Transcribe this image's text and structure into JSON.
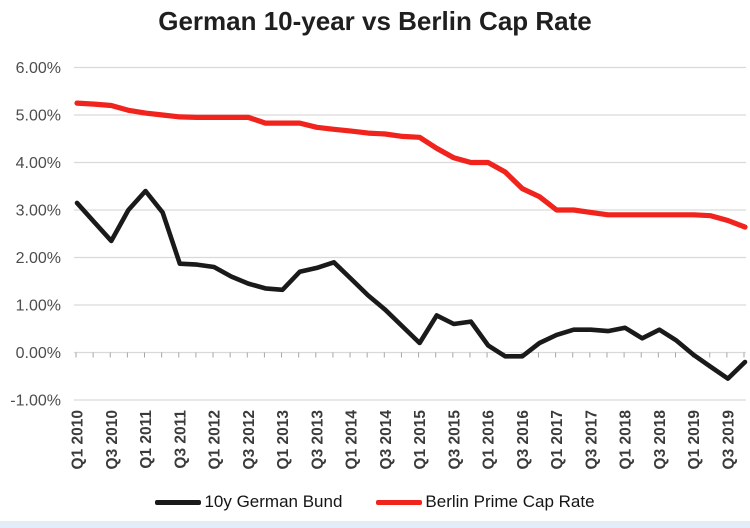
{
  "title": "German 10-year vs Berlin Cap Rate",
  "chart_data": {
    "type": "line",
    "categories": [
      "Q1 2010",
      "Q2 2010",
      "Q3 2010",
      "Q4 2010",
      "Q1 2011",
      "Q2 2011",
      "Q3 2011",
      "Q4 2011",
      "Q1 2012",
      "Q2 2012",
      "Q3 2012",
      "Q4 2012",
      "Q1 2013",
      "Q2 2013",
      "Q3 2013",
      "Q4 2013",
      "Q1 2014",
      "Q2 2014",
      "Q3 2014",
      "Q4 2014",
      "Q1 2015",
      "Q2 2015",
      "Q3 2015",
      "Q4 2015",
      "Q1 2016",
      "Q2 2016",
      "Q3 2016",
      "Q4 2016",
      "Q1 2017",
      "Q2 2017",
      "Q3 2017",
      "Q4 2017",
      "Q1 2018",
      "Q2 2018",
      "Q3 2018",
      "Q4 2018",
      "Q1 2019",
      "Q2 2019",
      "Q3 2019",
      "Q4 2019"
    ],
    "x_labels_shown": [
      "Q1 2010",
      "Q3 2010",
      "Q1 2011",
      "Q3 2011",
      "Q1 2012",
      "Q3 2012",
      "Q1 2013",
      "Q3 2013",
      "Q1 2014",
      "Q3 2014",
      "Q1 2015",
      "Q3 2015",
      "Q1 2016",
      "Q3 2016",
      "Q1 2017",
      "Q3 2017",
      "Q1 2018",
      "Q3 2018",
      "Q1 2019",
      "Q3 2019"
    ],
    "x_label_interval": 2,
    "series": [
      {
        "name": "10y German Bund",
        "color": "#1a1a1a",
        "stroke_width": 4.6,
        "values": [
          3.15,
          2.75,
          2.35,
          3.0,
          3.4,
          2.95,
          1.87,
          1.85,
          1.8,
          1.6,
          1.45,
          1.35,
          1.32,
          1.7,
          1.78,
          1.9,
          1.55,
          1.2,
          0.9,
          0.55,
          0.2,
          0.78,
          0.6,
          0.65,
          0.15,
          -0.08,
          -0.08,
          0.2,
          0.37,
          0.48,
          0.48,
          0.45,
          0.52,
          0.3,
          0.48,
          0.25,
          -0.05,
          -0.3,
          -0.55,
          -0.2
        ]
      },
      {
        "name": "Berlin Prime Cap Rate",
        "color": "#f0231d",
        "stroke_width": 5.2,
        "values": [
          5.25,
          5.23,
          5.2,
          5.1,
          5.04,
          5.0,
          4.96,
          4.95,
          4.95,
          4.95,
          4.95,
          4.83,
          4.83,
          4.83,
          4.74,
          4.7,
          4.66,
          4.62,
          4.6,
          4.55,
          4.53,
          4.3,
          4.1,
          4.0,
          4.0,
          3.8,
          3.45,
          3.28,
          3.0,
          3.0,
          2.95,
          2.9,
          2.9,
          2.9,
          2.9,
          2.9,
          2.9,
          2.88,
          2.78,
          2.64
        ]
      }
    ],
    "title": "German 10-year vs Berlin Cap Rate",
    "xlabel": "",
    "ylabel": "",
    "ylim": [
      -1,
      6
    ],
    "y_ticks": [
      "6.00%",
      "5.00%",
      "4.00%",
      "3.00%",
      "2.00%",
      "1.00%",
      "0.00%",
      "-1.00%"
    ],
    "y_tick_values": [
      6,
      5,
      4,
      3,
      2,
      1,
      0,
      -1
    ],
    "grid": "horizontal",
    "legend_position": "bottom"
  },
  "legend": {
    "items": [
      {
        "label": "10y German Bund",
        "color": "#1a1a1a"
      },
      {
        "label": "Berlin Prime Cap Rate",
        "color": "#f0231d"
      }
    ]
  },
  "colors": {
    "gridline": "#d9d9d9",
    "axis_tick": "#a6a6a6",
    "y_label": "#4d4d4d",
    "x_label": "#3b3b3b",
    "title": "#1f1f1f",
    "bottom_strip": "#e3edf7"
  }
}
